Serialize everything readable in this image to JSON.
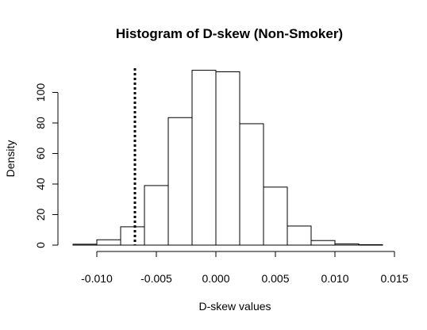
{
  "chart_data": {
    "type": "bar",
    "title": "Histogram of D-skew (Non-Smoker)",
    "xlabel": "D-skew values",
    "ylabel": "Density",
    "bin_edges": [
      -0.012,
      -0.01,
      -0.008,
      -0.006,
      -0.004,
      -0.002,
      0.0,
      0.002,
      0.004,
      0.006,
      0.008,
      0.01,
      0.012,
      0.014
    ],
    "values": [
      0.6,
      3.5,
      12,
      39,
      83.5,
      114.5,
      113.5,
      79.5,
      38,
      12.5,
      3,
      0.8,
      0.3
    ],
    "xlim": [
      -0.0125,
      0.015
    ],
    "ylim": [
      0,
      115
    ],
    "xticks": [
      -0.01,
      -0.005,
      0.0,
      0.005,
      0.01,
      0.015
    ],
    "xtick_labels": [
      "-0.010",
      "-0.005",
      "0.000",
      "0.005",
      "0.010",
      "0.015"
    ],
    "yticks": [
      0,
      20,
      40,
      60,
      80,
      100
    ],
    "ytick_labels": [
      "0",
      "20",
      "40",
      "60",
      "80",
      "100"
    ],
    "reference_line": {
      "x": -0.0068,
      "style": "dotted"
    },
    "grid": false,
    "legend": "none"
  }
}
